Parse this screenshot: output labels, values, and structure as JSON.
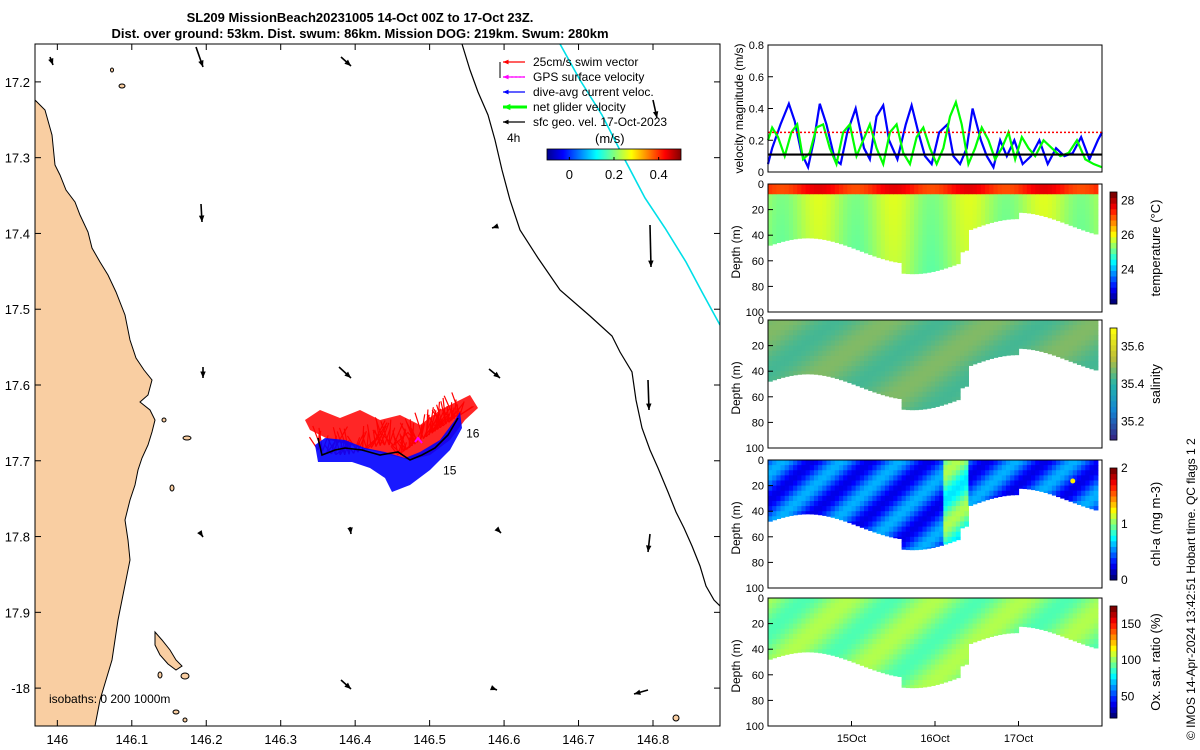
{
  "title": {
    "line1": "SL209 MissionBeach20231005 14-Oct 00Z to 17-Oct 23Z.",
    "line2": "Dist. over ground: 53km. Dist. swum: 86km. Mission DOG: 219km. Swum: 280km"
  },
  "credit": "© IMOS 14-Apr-2024 13:42:51 Hobart time. QC flags 1  2",
  "colors": {
    "land": "#f9ceA2",
    "swim": "#ff0000",
    "gps": "#ff00ff",
    "current": "#0000ff",
    "net": "#00ff00",
    "geo": "#000000",
    "track": "#00dfe8"
  },
  "map": {
    "x_ticks": [
      "146",
      "146.1",
      "146.2",
      "146.3",
      "146.4",
      "146.5",
      "146.6",
      "146.7",
      "146.8"
    ],
    "x_values": [
      146.0,
      146.1,
      146.2,
      146.3,
      146.4,
      146.5,
      146.6,
      146.7,
      146.8
    ],
    "y_ticks": [
      "17.2",
      "17.3",
      "17.4",
      "17.5",
      "17.6",
      "17.7",
      "17.8",
      "17.9",
      "-18"
    ],
    "y_values": [
      -17.2,
      -17.3,
      -17.4,
      -17.5,
      -17.6,
      -17.7,
      -17.8,
      -17.9,
      -18.0
    ],
    "xlim": [
      145.97,
      146.89
    ],
    "ylim": [
      -18.05,
      -17.15
    ],
    "legend": [
      {
        "label": "25cm/s swim vector",
        "color": "#ff0000"
      },
      {
        "label": "GPS surface velocity",
        "color": "#ff00ff"
      },
      {
        "label": "dive-avg current veloc.",
        "color": "#0000ff"
      },
      {
        "label": "net glider velocity",
        "color": "#00ff00"
      },
      {
        "label": "sfc geo. vel. 17-Oct-2023",
        "color": "#000000"
      }
    ],
    "legend_scale_label": "4h",
    "colorbar_label": "(m/s)",
    "colorbar_ticks": [
      "0",
      "0.2",
      "0.4"
    ],
    "colorbar_tick_values": [
      0,
      0.2,
      0.4
    ],
    "colorbar_range": [
      -0.1,
      0.5
    ],
    "isobath_label": "isobaths: 0   200  1000m",
    "day_labels": [
      {
        "text": "16",
        "lon": 146.549,
        "lat": -17.669
      },
      {
        "text": "15",
        "lon": 146.518,
        "lat": -17.718
      }
    ]
  },
  "chart_data": [
    {
      "type": "line",
      "name": "velocity",
      "ylabel": "velocity magnitude (m/s)",
      "ylim": [
        0,
        0.8
      ],
      "yticks": [
        0,
        0.2,
        0.4,
        0.6,
        0.8
      ],
      "xlim": [
        14.0,
        18.0
      ],
      "series": [
        {
          "color": "#0000ff",
          "x": [
            14.0,
            14.05,
            14.15,
            14.25,
            14.32,
            14.4,
            14.48,
            14.55,
            14.62,
            14.7,
            14.8,
            14.87,
            14.95,
            15.05,
            15.15,
            15.22,
            15.3,
            15.38,
            15.45,
            15.55,
            15.65,
            15.72,
            15.8,
            15.88,
            15.96,
            16.05,
            16.15,
            16.22,
            16.3,
            16.38,
            16.45,
            16.55,
            16.62,
            16.7,
            16.78,
            16.86,
            16.95,
            17.05,
            17.15,
            17.25,
            17.35,
            17.45,
            17.55,
            17.65,
            17.75,
            17.85,
            17.95,
            18.0
          ],
          "y": [
            0.05,
            0.15,
            0.3,
            0.43,
            0.32,
            0.12,
            0.03,
            0.2,
            0.43,
            0.3,
            0.08,
            0.05,
            0.25,
            0.4,
            0.15,
            0.08,
            0.35,
            0.42,
            0.2,
            0.08,
            0.3,
            0.42,
            0.25,
            0.1,
            0.05,
            0.25,
            0.3,
            0.1,
            0.05,
            0.15,
            0.4,
            0.2,
            0.1,
            0.03,
            0.2,
            0.1,
            0.2,
            0.05,
            0.1,
            0.2,
            0.05,
            0.15,
            0.1,
            0.12,
            0.22,
            0.08,
            0.2,
            0.25
          ]
        },
        {
          "color": "#00ff00",
          "x": [
            14.0,
            14.05,
            14.12,
            14.2,
            14.28,
            14.35,
            14.42,
            14.5,
            14.58,
            14.66,
            14.74,
            14.82,
            14.9,
            14.98,
            15.06,
            15.14,
            15.22,
            15.3,
            15.38,
            15.46,
            15.54,
            15.62,
            15.7,
            15.78,
            15.86,
            15.94,
            16.02,
            16.1,
            16.18,
            16.25,
            16.32,
            16.4,
            16.48,
            16.56,
            16.64,
            16.72,
            16.8,
            16.88,
            16.96,
            17.04,
            17.12,
            17.2,
            17.3,
            17.4,
            17.5,
            17.6,
            17.7,
            17.8,
            17.9,
            18.0
          ],
          "y": [
            0.2,
            0.28,
            0.22,
            0.1,
            0.25,
            0.3,
            0.08,
            0.12,
            0.28,
            0.3,
            0.15,
            0.05,
            0.25,
            0.3,
            0.1,
            0.2,
            0.3,
            0.15,
            0.05,
            0.25,
            0.3,
            0.12,
            0.05,
            0.22,
            0.28,
            0.15,
            0.05,
            0.15,
            0.35,
            0.44,
            0.3,
            0.05,
            0.15,
            0.28,
            0.2,
            0.08,
            0.15,
            0.25,
            0.08,
            0.22,
            0.15,
            0.1,
            0.2,
            0.15,
            0.1,
            0.12,
            0.2,
            0.08,
            0.05,
            0.03
          ]
        },
        {
          "color": "#ff0000",
          "style": "dotted",
          "x": [
            14.0,
            18.0
          ],
          "y": [
            0.25,
            0.25
          ]
        },
        {
          "color": "#000000",
          "x": [
            14.0,
            18.0
          ],
          "y": [
            0.11,
            0.11
          ]
        }
      ]
    },
    {
      "type": "heatmap",
      "ylabel": "Depth (m)",
      "colorbar_label": "temperature (°C)",
      "colorbar_ticks": [
        24,
        26,
        28
      ],
      "clim": [
        22,
        28.5
      ],
      "ylim": [
        100,
        0
      ],
      "yticks": [
        0,
        20,
        40,
        60,
        80,
        100
      ]
    },
    {
      "type": "heatmap",
      "ylabel": "Depth (m)",
      "colorbar_label": "salinity",
      "colorbar_ticks": [
        35.2,
        35.4,
        35.6
      ],
      "clim": [
        35.1,
        35.7
      ],
      "ylim": [
        100,
        0
      ],
      "yticks": [
        0,
        20,
        40,
        60,
        80,
        100
      ]
    },
    {
      "type": "heatmap",
      "ylabel": "Depth (m)",
      "colorbar_label": "chl-a (mg m-3)",
      "colorbar_ticks": [
        0,
        1,
        2
      ],
      "clim": [
        0,
        2
      ],
      "ylim": [
        100,
        0
      ],
      "yticks": [
        0,
        20,
        40,
        60,
        80,
        100
      ]
    },
    {
      "type": "heatmap",
      "ylabel": "Depth (m)",
      "colorbar_label": "Ox. sat. ratio (%)",
      "colorbar_ticks": [
        50,
        100,
        150
      ],
      "clim": [
        20,
        175
      ],
      "ylim": [
        100,
        0
      ],
      "yticks": [
        0,
        20,
        40,
        60,
        80,
        100
      ],
      "xticks": [
        "15Oct",
        "16Oct",
        "17Oct"
      ],
      "xtick_values": [
        15,
        16,
        17
      ]
    }
  ]
}
